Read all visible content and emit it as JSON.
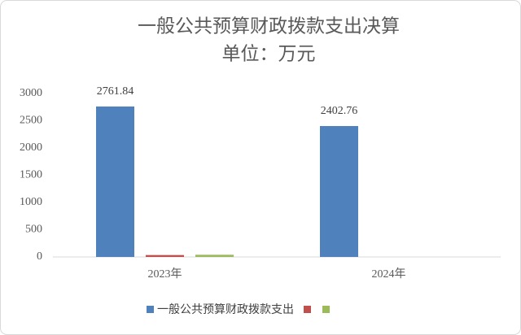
{
  "chart_data": {
    "type": "bar",
    "title": "一般公共预算财政拨款支出决算",
    "subtitle": "单位：万元",
    "categories": [
      "2023年",
      "2024年"
    ],
    "series": [
      {
        "name": "一般公共预算财政拨款支出",
        "color": "#4f81bd",
        "values": [
          2761.84,
          2402.76
        ],
        "data_labels": true
      },
      {
        "color": "#c0504d",
        "values": [
          35,
          0
        ]
      },
      {
        "color": "#9bbb59",
        "values": [
          40,
          0
        ]
      }
    ],
    "ylim": [
      0,
      3000
    ],
    "yticks": [
      0,
      500,
      1000,
      1500,
      2000,
      2500,
      3000
    ],
    "grid": false
  }
}
